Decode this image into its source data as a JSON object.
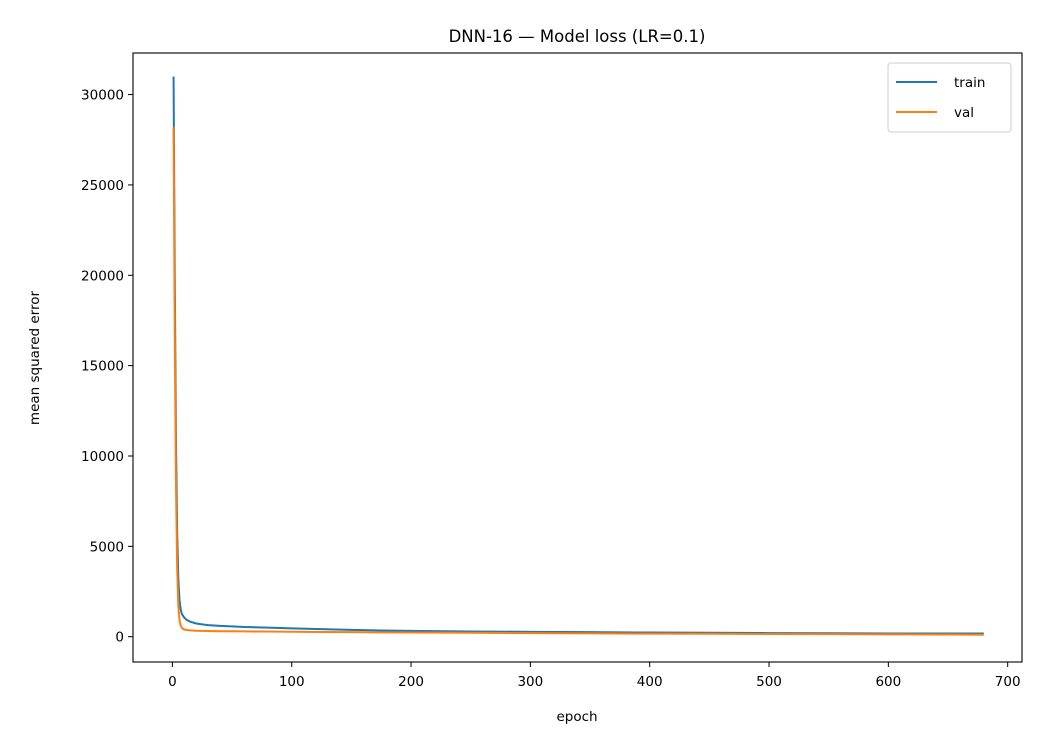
{
  "chart_data": {
    "type": "line",
    "title": "DNN-16 — Model loss (LR=0.1)",
    "xlabel": "epoch",
    "ylabel": "mean squared error",
    "xlim": [
      -33,
      712
    ],
    "ylim": [
      -1400,
      32300
    ],
    "xticks": [
      0,
      100,
      200,
      300,
      400,
      500,
      600,
      700
    ],
    "yticks": [
      0,
      5000,
      10000,
      15000,
      20000,
      25000,
      30000
    ],
    "xtick_labels": [
      "0",
      "100",
      "200",
      "300",
      "400",
      "500",
      "600",
      "700"
    ],
    "ytick_labels": [
      "0",
      "5000",
      "10000",
      "15000",
      "20000",
      "25000",
      "30000"
    ],
    "grid": false,
    "legend_position": "top-right",
    "series": [
      {
        "name": "train",
        "color": "#1f77b4",
        "x": [
          1,
          2,
          3,
          4,
          5,
          6,
          7,
          8,
          10,
          12,
          15,
          20,
          25,
          30,
          40,
          50,
          60,
          80,
          100,
          125,
          150,
          175,
          200,
          250,
          300,
          350,
          400,
          450,
          500,
          550,
          600,
          650,
          680
        ],
        "y": [
          31000,
          20000,
          11000,
          5800,
          3200,
          2000,
          1500,
          1250,
          1050,
          930,
          830,
          730,
          680,
          640,
          600,
          570,
          540,
          500,
          460,
          420,
          380,
          345,
          320,
          290,
          270,
          250,
          230,
          215,
          200,
          190,
          180,
          175,
          180
        ]
      },
      {
        "name": "val",
        "color": "#ff7f0e",
        "x": [
          1,
          2,
          3,
          4,
          5,
          6,
          7,
          8,
          10,
          12,
          15,
          20,
          25,
          30,
          40,
          50,
          60,
          80,
          100,
          125,
          150,
          175,
          200,
          250,
          300,
          350,
          400,
          450,
          500,
          550,
          600,
          650,
          680
        ],
        "y": [
          28200,
          16500,
          8500,
          3800,
          1700,
          900,
          620,
          480,
          400,
          370,
          350,
          330,
          320,
          315,
          305,
          300,
          295,
          285,
          275,
          260,
          250,
          240,
          230,
          215,
          200,
          185,
          170,
          160,
          150,
          140,
          130,
          120,
          110
        ]
      }
    ]
  }
}
